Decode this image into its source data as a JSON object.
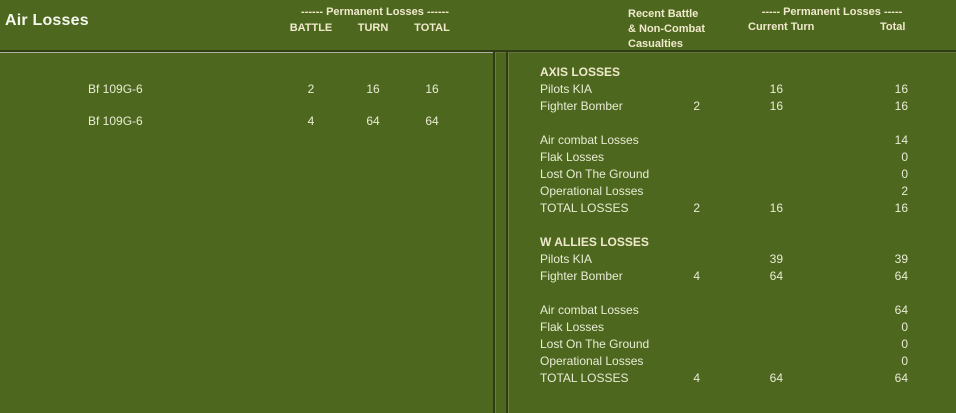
{
  "title": "Air Losses",
  "colors": {
    "background": "#4d671f",
    "title_text": "#f6f7ee",
    "header_text": "#f0e9cb",
    "data_text": "#e9ecd4",
    "divider_dark": "#2f3d13",
    "divider_light": "#aeb1a3"
  },
  "left_panel": {
    "group_header": "------ Permanent Losses ------",
    "columns": [
      "BATTLE",
      "TURN",
      "TOTAL"
    ],
    "rows": [
      {
        "label": "Bf 109G-6",
        "battle": "2",
        "turn": "16",
        "total": "16"
      },
      {
        "label": "Bf 109G-6",
        "battle": "4",
        "turn": "64",
        "total": "64"
      }
    ]
  },
  "right_panel": {
    "casualty_header": [
      "Recent Battle",
      "& Non-Combat",
      "Casualties"
    ],
    "group_header": "----- Permanent Losses -----",
    "columns": [
      "Current Turn",
      "Total"
    ],
    "sections": [
      {
        "header": "AXIS LOSSES",
        "rows": [
          {
            "label": "Pilots KIA",
            "battle": "",
            "turn": "16",
            "total": "16"
          },
          {
            "label": "Fighter Bomber",
            "battle": "2",
            "turn": "16",
            "total": "16"
          },
          {
            "label": "",
            "battle": "",
            "turn": "",
            "total": ""
          },
          {
            "label": "Air combat Losses",
            "battle": "",
            "turn": "",
            "total": "14"
          },
          {
            "label": "Flak Losses",
            "battle": "",
            "turn": "",
            "total": "0"
          },
          {
            "label": "Lost On The Ground",
            "battle": "",
            "turn": "",
            "total": "0"
          },
          {
            "label": "Operational Losses",
            "battle": "",
            "turn": "",
            "total": "2"
          },
          {
            "label": "TOTAL LOSSES",
            "battle": "2",
            "turn": "16",
            "total": "16"
          }
        ]
      },
      {
        "header": "W ALLIES LOSSES",
        "rows": [
          {
            "label": "Pilots KIA",
            "battle": "",
            "turn": "39",
            "total": "39"
          },
          {
            "label": "Fighter Bomber",
            "battle": "4",
            "turn": "64",
            "total": "64"
          },
          {
            "label": "",
            "battle": "",
            "turn": "",
            "total": ""
          },
          {
            "label": "Air combat Losses",
            "battle": "",
            "turn": "",
            "total": "64"
          },
          {
            "label": "Flak Losses",
            "battle": "",
            "turn": "",
            "total": "0"
          },
          {
            "label": "Lost On The Ground",
            "battle": "",
            "turn": "",
            "total": "0"
          },
          {
            "label": "Operational Losses",
            "battle": "",
            "turn": "",
            "total": "0"
          },
          {
            "label": "TOTAL LOSSES",
            "battle": "4",
            "turn": "64",
            "total": "64"
          }
        ]
      }
    ]
  }
}
